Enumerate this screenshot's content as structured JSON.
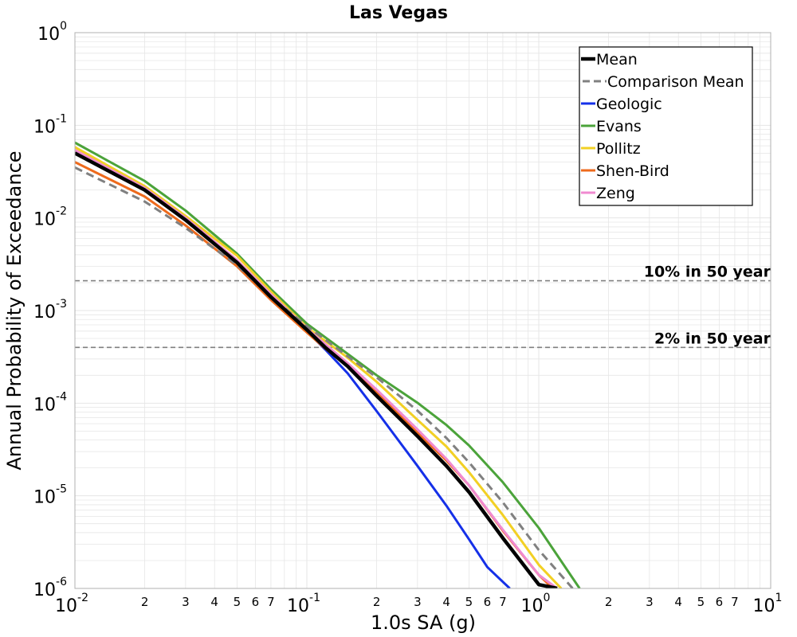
{
  "chart_data": {
    "type": "line",
    "title": "Las Vegas",
    "xlabel": "1.0s SA (g)",
    "ylabel": "Annual Probability of Exceedance",
    "x_scale": "log",
    "y_scale": "log",
    "xlim": [
      0.01,
      10
    ],
    "ylim": [
      1e-06,
      1
    ],
    "grid": true,
    "legend_position": "top-right",
    "x_major_ticks": [
      {
        "value": 0.01,
        "base": "10",
        "exp": "-2"
      },
      {
        "value": 0.1,
        "base": "10",
        "exp": "-1"
      },
      {
        "value": 1,
        "base": "10",
        "exp": "0"
      },
      {
        "value": 10,
        "base": "10",
        "exp": "1"
      }
    ],
    "y_major_ticks": [
      {
        "value": 1,
        "base": "10",
        "exp": "0"
      },
      {
        "value": 0.1,
        "base": "10",
        "exp": "-1"
      },
      {
        "value": 0.01,
        "base": "10",
        "exp": "-2"
      },
      {
        "value": 0.001,
        "base": "10",
        "exp": "-3"
      },
      {
        "value": 0.0001,
        "base": "10",
        "exp": "-4"
      },
      {
        "value": 1e-05,
        "base": "10",
        "exp": "-5"
      },
      {
        "value": 1e-06,
        "base": "10",
        "exp": "-6"
      }
    ],
    "x_minor_tick_labels": [
      "2",
      "3",
      "4",
      "5",
      "6",
      "7"
    ],
    "reference_lines": [
      {
        "label": "10% in 50 year",
        "y": 0.0021,
        "color": "#808080"
      },
      {
        "label": "2% in 50 year",
        "y": 0.0004,
        "color": "#808080"
      }
    ],
    "series": [
      {
        "name": "Mean",
        "color": "#000000",
        "dashed": false,
        "x": [
          0.01,
          0.02,
          0.03,
          0.05,
          0.07,
          0.1,
          0.12,
          0.15,
          0.2,
          0.3,
          0.4,
          0.5,
          0.7,
          1.0,
          1.2
        ],
        "y": [
          0.05,
          0.02,
          0.0095,
          0.0033,
          0.0014,
          0.00062,
          0.0004,
          0.00025,
          0.00012,
          4.4e-05,
          2.1e-05,
          1.1e-05,
          3.5e-06,
          1.1e-06,
          1e-06
        ]
      },
      {
        "name": "Comparison Mean",
        "color": "#808080",
        "dashed": true,
        "x": [
          0.01,
          0.02,
          0.03,
          0.05,
          0.07,
          0.1,
          0.15,
          0.2,
          0.3,
          0.4,
          0.5,
          0.7,
          1.0,
          1.4
        ],
        "y": [
          0.035,
          0.015,
          0.0078,
          0.0031,
          0.0014,
          0.00068,
          0.00032,
          0.00019,
          8.3e-05,
          4.2e-05,
          2.3e-05,
          8.5e-06,
          2.6e-06,
          1e-06
        ]
      },
      {
        "name": "Geologic",
        "color": "#1530e8",
        "dashed": false,
        "x": [
          0.01,
          0.02,
          0.03,
          0.05,
          0.07,
          0.1,
          0.12,
          0.15,
          0.2,
          0.3,
          0.4,
          0.5,
          0.6,
          0.75
        ],
        "y": [
          0.05,
          0.02,
          0.0095,
          0.0033,
          0.0014,
          0.0006,
          0.00038,
          0.00021,
          8.2e-05,
          2.1e-05,
          7.8e-06,
          3.4e-06,
          1.7e-06,
          1e-06
        ]
      },
      {
        "name": "Evans",
        "color": "#4ba33a",
        "dashed": false,
        "x": [
          0.01,
          0.02,
          0.03,
          0.05,
          0.07,
          0.1,
          0.15,
          0.2,
          0.3,
          0.4,
          0.5,
          0.7,
          1.0,
          1.5
        ],
        "y": [
          0.065,
          0.025,
          0.012,
          0.0041,
          0.0017,
          0.00072,
          0.00034,
          0.0002,
          0.000101,
          5.8e-05,
          3.5e-05,
          1.4e-05,
          4.5e-06,
          1e-06
        ]
      },
      {
        "name": "Pollitz",
        "color": "#f2d024",
        "dashed": false,
        "x": [
          0.01,
          0.02,
          0.03,
          0.05,
          0.07,
          0.1,
          0.15,
          0.2,
          0.3,
          0.4,
          0.5,
          0.7,
          1.0,
          1.25
        ],
        "y": [
          0.058,
          0.022,
          0.0105,
          0.0039,
          0.0016,
          0.00066,
          0.00031,
          0.00017,
          6.6e-05,
          3.4e-05,
          1.8e-05,
          6.2e-06,
          1.8e-06,
          1e-06
        ]
      },
      {
        "name": "Shen-Bird",
        "color": "#ee6a1c",
        "dashed": false,
        "x": [
          0.01,
          0.02,
          0.03,
          0.05,
          0.07,
          0.1,
          0.12,
          0.15,
          0.2,
          0.3,
          0.4,
          0.5,
          0.7,
          1.0,
          1.15
        ],
        "y": [
          0.04,
          0.017,
          0.0083,
          0.003,
          0.0013,
          0.00058,
          0.00039,
          0.00025,
          0.00013,
          4.8e-05,
          2.4e-05,
          1.3e-05,
          4.2e-06,
          1.4e-06,
          1e-06
        ]
      },
      {
        "name": "Zeng",
        "color": "#f08ad0",
        "dashed": false,
        "x": [
          0.01,
          0.02,
          0.03,
          0.05,
          0.07,
          0.1,
          0.15,
          0.2,
          0.3,
          0.4,
          0.5,
          0.7,
          1.0,
          1.2
        ],
        "y": [
          0.054,
          0.021,
          0.01,
          0.0035,
          0.0015,
          0.00064,
          0.00027,
          0.00014,
          5.2e-05,
          2.5e-05,
          1.3e-05,
          4.3e-06,
          1.4e-06,
          1e-06
        ]
      }
    ]
  },
  "colors": {
    "grid": "#e6e6e6",
    "axes_frame": "#b0b0b0",
    "legend_frame": "#000000"
  }
}
